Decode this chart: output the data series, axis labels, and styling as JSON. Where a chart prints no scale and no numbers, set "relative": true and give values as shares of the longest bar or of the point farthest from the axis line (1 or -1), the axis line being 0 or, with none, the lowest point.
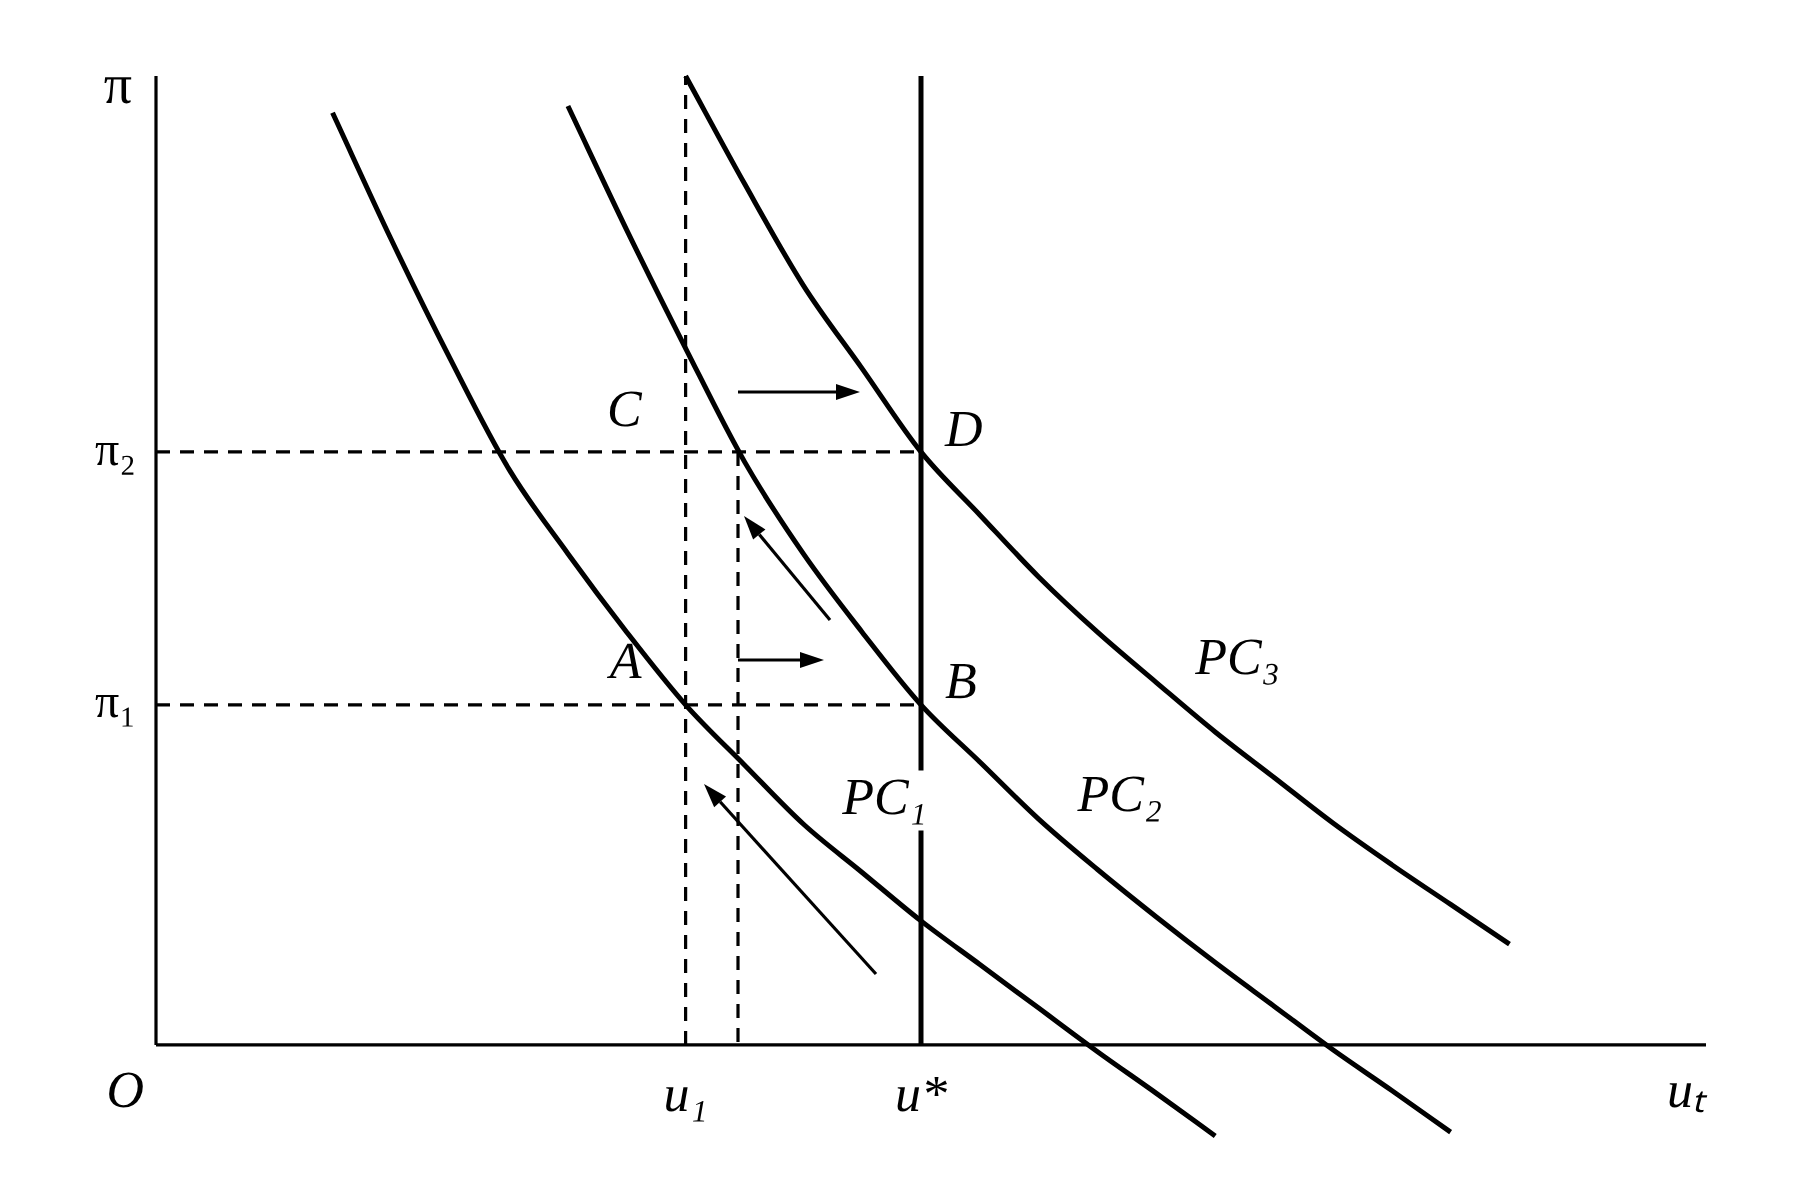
{
  "chart_data": {
    "type": "line",
    "relative": true,
    "xlabel": "uₜ",
    "ylabel": "π",
    "marker": "none",
    "categories": [
      null,
      null,
      null,
      null,
      null,
      null,
      null,
      null,
      null,
      "u₁",
      null,
      null,
      null,
      "u*",
      null,
      null,
      null,
      null,
      null,
      null,
      null,
      null,
      null,
      null,
      null,
      null,
      null
    ],
    "series": [
      {
        "name": "PC₁",
        "color": "#000000",
        "values": [
          null,
          null,
          null,
          0.962,
          0.831,
          0.708,
          0.594,
          0.507,
          0.426,
          0.351,
          0.289,
          0.228,
          0.178,
          0.128,
          0.083,
          0.038,
          -0.007,
          -0.05,
          -0.094,
          null,
          null,
          null,
          null,
          null,
          null,
          null,
          null
        ]
      },
      {
        "name": "PC₂",
        "color": "#000000",
        "values": [
          null,
          null,
          null,
          null,
          null,
          null,
          null,
          0.969,
          0.841,
          0.719,
          0.602,
          0.507,
          0.426,
          0.351,
          0.292,
          0.233,
          0.181,
          0.132,
          0.085,
          0.04,
          -0.005,
          -0.047,
          -0.09,
          null,
          null,
          null,
          null
        ]
      },
      {
        "name": "PC₃",
        "color": "#000000",
        "values": [
          null,
          null,
          null,
          null,
          null,
          null,
          null,
          null,
          null,
          1.0,
          0.889,
          0.784,
          0.698,
          0.612,
          0.547,
          0.483,
          0.426,
          0.374,
          0.323,
          0.276,
          0.229,
          0.186,
          0.145,
          0.104,
          null,
          null,
          null
        ]
      },
      {
        "name": "π₂",
        "color": "#000000",
        "line_style": "dashed",
        "values": [
          0.612,
          0.612,
          0.612,
          0.612,
          0.612,
          0.612,
          0.612,
          0.612,
          0.612,
          0.612,
          0.612,
          0.612,
          0.612,
          0.612,
          null,
          null,
          null,
          null,
          null,
          null,
          null,
          null,
          null,
          null,
          null,
          null,
          null
        ]
      },
      {
        "name": "π₁",
        "color": "#000000",
        "line_style": "dashed",
        "values": [
          0.351,
          0.351,
          0.351,
          0.351,
          0.351,
          0.351,
          0.351,
          0.351,
          0.351,
          0.351,
          0.351,
          0.351,
          0.351,
          0.351,
          null,
          null,
          null,
          null,
          null,
          null,
          null,
          null,
          null,
          null,
          null,
          null,
          null
        ]
      }
    ],
    "ref_lines": [
      {
        "axis": "x",
        "value": "u*",
        "color": "#000000",
        "line_style": "solid"
      },
      {
        "axis": "x",
        "value": "u₁",
        "color": "#000000",
        "line_style": "dashed"
      }
    ],
    "annotations": [
      {
        "text": "A",
        "x": "u₁",
        "y": 0.351
      },
      {
        "text": "B",
        "x": "u*",
        "y": 0.351
      },
      {
        "text": "C",
        "x": "u₁",
        "y": 0.612
      },
      {
        "text": "D",
        "x": "u*",
        "y": 0.612
      },
      "O"
    ]
  }
}
